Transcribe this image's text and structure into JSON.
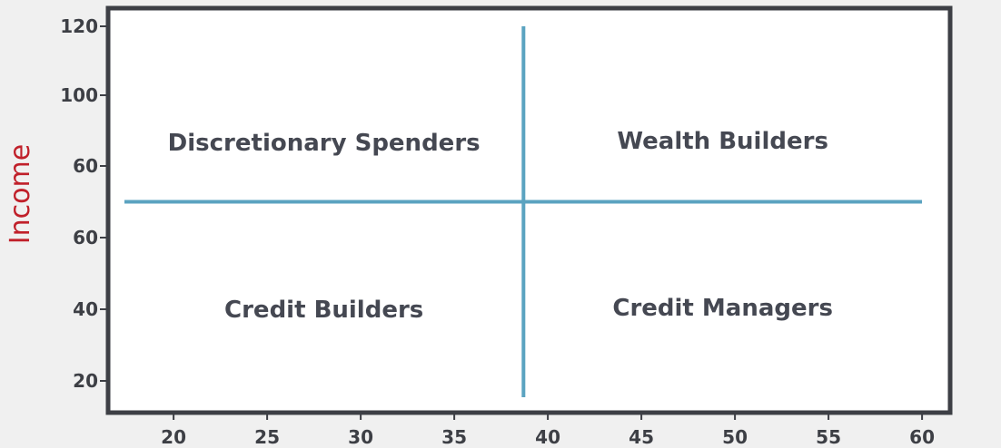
{
  "chart_data": {
    "type": "scatter",
    "title": "",
    "xlabel": "",
    "ylabel": "Income",
    "x_ticks": [
      "20",
      "25",
      "30",
      "35",
      "40",
      "45",
      "50",
      "55",
      "60"
    ],
    "y_ticks": [
      "120",
      "100",
      "60",
      "60",
      "40",
      "20"
    ],
    "xlim": [
      16.5,
      61.5
    ],
    "grid": false,
    "dividers": {
      "vertical_x": 38.7,
      "horizontal_between_ticks": [
        "60",
        "60"
      ]
    },
    "quadrants": [
      {
        "position": "top-left",
        "label": "Discretionary Spenders"
      },
      {
        "position": "top-right",
        "label": "Wealth Builders"
      },
      {
        "position": "bottom-left",
        "label": "Credit Builders"
      },
      {
        "position": "bottom-right",
        "label": "Credit Managers"
      }
    ],
    "colors": {
      "divider": "#5ba3c0",
      "frame": "#3d3f45",
      "ylabel": "#c0202a",
      "text": "#454852"
    }
  }
}
